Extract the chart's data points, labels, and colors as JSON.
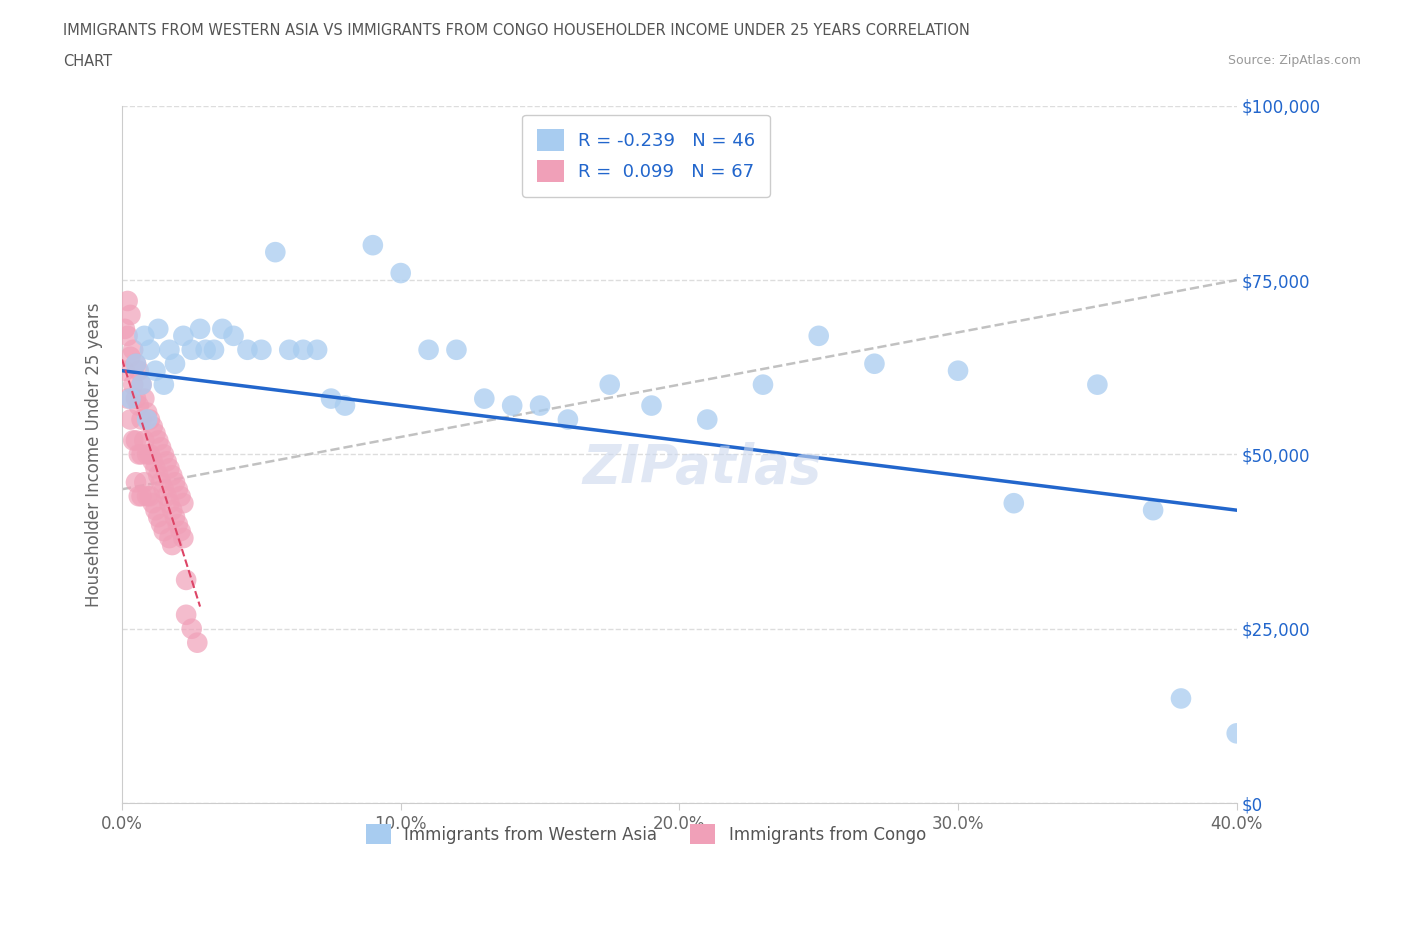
{
  "title_line1": "IMMIGRANTS FROM WESTERN ASIA VS IMMIGRANTS FROM CONGO HOUSEHOLDER INCOME UNDER 25 YEARS CORRELATION",
  "title_line2": "CHART",
  "source": "Source: ZipAtlas.com",
  "ylabel": "Householder Income Under 25 years",
  "xlabel_ticks": [
    "0.0%",
    "10.0%",
    "20.0%",
    "30.0%",
    "40.0%"
  ],
  "xlabel_vals": [
    0.0,
    0.1,
    0.2,
    0.3,
    0.4
  ],
  "ylabel_ticks": [
    "$0",
    "$25,000",
    "$50,000",
    "$75,000",
    "$100,000"
  ],
  "ylabel_vals": [
    0,
    25000,
    50000,
    75000,
    100000
  ],
  "xlim": [
    0.0,
    0.4
  ],
  "ylim": [
    0,
    100000
  ],
  "R_western_asia": -0.239,
  "N_western_asia": 46,
  "R_congo": 0.099,
  "N_congo": 67,
  "color_western_asia": "#a8ccf0",
  "color_congo": "#f0a0b8",
  "color_trendline_western_asia": "#2266cc",
  "color_trendline_congo": "#dd4466",
  "color_trendline_gray": "#bbbbbb",
  "legend_label_western_asia": "Immigrants from Western Asia",
  "legend_label_congo": "Immigrants from Congo",
  "watermark": "ZIPatlas",
  "western_asia_x": [
    0.003,
    0.005,
    0.007,
    0.008,
    0.009,
    0.01,
    0.012,
    0.013,
    0.015,
    0.017,
    0.019,
    0.022,
    0.025,
    0.028,
    0.03,
    0.033,
    0.036,
    0.04,
    0.045,
    0.05,
    0.055,
    0.06,
    0.065,
    0.07,
    0.075,
    0.08,
    0.09,
    0.1,
    0.11,
    0.12,
    0.13,
    0.14,
    0.15,
    0.16,
    0.175,
    0.19,
    0.21,
    0.23,
    0.25,
    0.27,
    0.3,
    0.32,
    0.35,
    0.37,
    0.38,
    0.4
  ],
  "western_asia_y": [
    58000,
    63000,
    60000,
    67000,
    55000,
    65000,
    62000,
    68000,
    60000,
    65000,
    63000,
    67000,
    65000,
    68000,
    65000,
    65000,
    68000,
    67000,
    65000,
    65000,
    79000,
    65000,
    65000,
    65000,
    58000,
    57000,
    80000,
    76000,
    65000,
    65000,
    58000,
    57000,
    57000,
    55000,
    60000,
    57000,
    55000,
    60000,
    67000,
    63000,
    62000,
    43000,
    60000,
    42000,
    15000,
    10000
  ],
  "congo_x": [
    0.001,
    0.001,
    0.002,
    0.002,
    0.002,
    0.003,
    0.003,
    0.003,
    0.004,
    0.004,
    0.004,
    0.005,
    0.005,
    0.005,
    0.005,
    0.006,
    0.006,
    0.006,
    0.006,
    0.007,
    0.007,
    0.007,
    0.007,
    0.008,
    0.008,
    0.008,
    0.009,
    0.009,
    0.009,
    0.01,
    0.01,
    0.01,
    0.011,
    0.011,
    0.011,
    0.012,
    0.012,
    0.012,
    0.013,
    0.013,
    0.013,
    0.014,
    0.014,
    0.014,
    0.015,
    0.015,
    0.015,
    0.016,
    0.016,
    0.017,
    0.017,
    0.017,
    0.018,
    0.018,
    0.018,
    0.019,
    0.019,
    0.02,
    0.02,
    0.021,
    0.021,
    0.022,
    0.022,
    0.023,
    0.023,
    0.025,
    0.027
  ],
  "congo_y": [
    68000,
    62000,
    72000,
    67000,
    58000,
    70000,
    64000,
    55000,
    65000,
    60000,
    52000,
    63000,
    58000,
    52000,
    46000,
    62000,
    57000,
    50000,
    44000,
    60000,
    55000,
    50000,
    44000,
    58000,
    52000,
    46000,
    56000,
    50000,
    44000,
    55000,
    50000,
    44000,
    54000,
    49000,
    43000,
    53000,
    48000,
    42000,
    52000,
    47000,
    41000,
    51000,
    46000,
    40000,
    50000,
    45000,
    39000,
    49000,
    44000,
    48000,
    43000,
    38000,
    47000,
    42000,
    37000,
    46000,
    41000,
    45000,
    40000,
    44000,
    39000,
    43000,
    38000,
    32000,
    27000,
    25000,
    23000
  ],
  "trendline_wa_x0": 0.0,
  "trendline_wa_x1": 0.4,
  "trendline_wa_y0": 62000,
  "trendline_wa_y1": 42000,
  "trendline_gray_x0": 0.0,
  "trendline_gray_x1": 0.4,
  "trendline_gray_y0": 45000,
  "trendline_gray_y1": 75000
}
